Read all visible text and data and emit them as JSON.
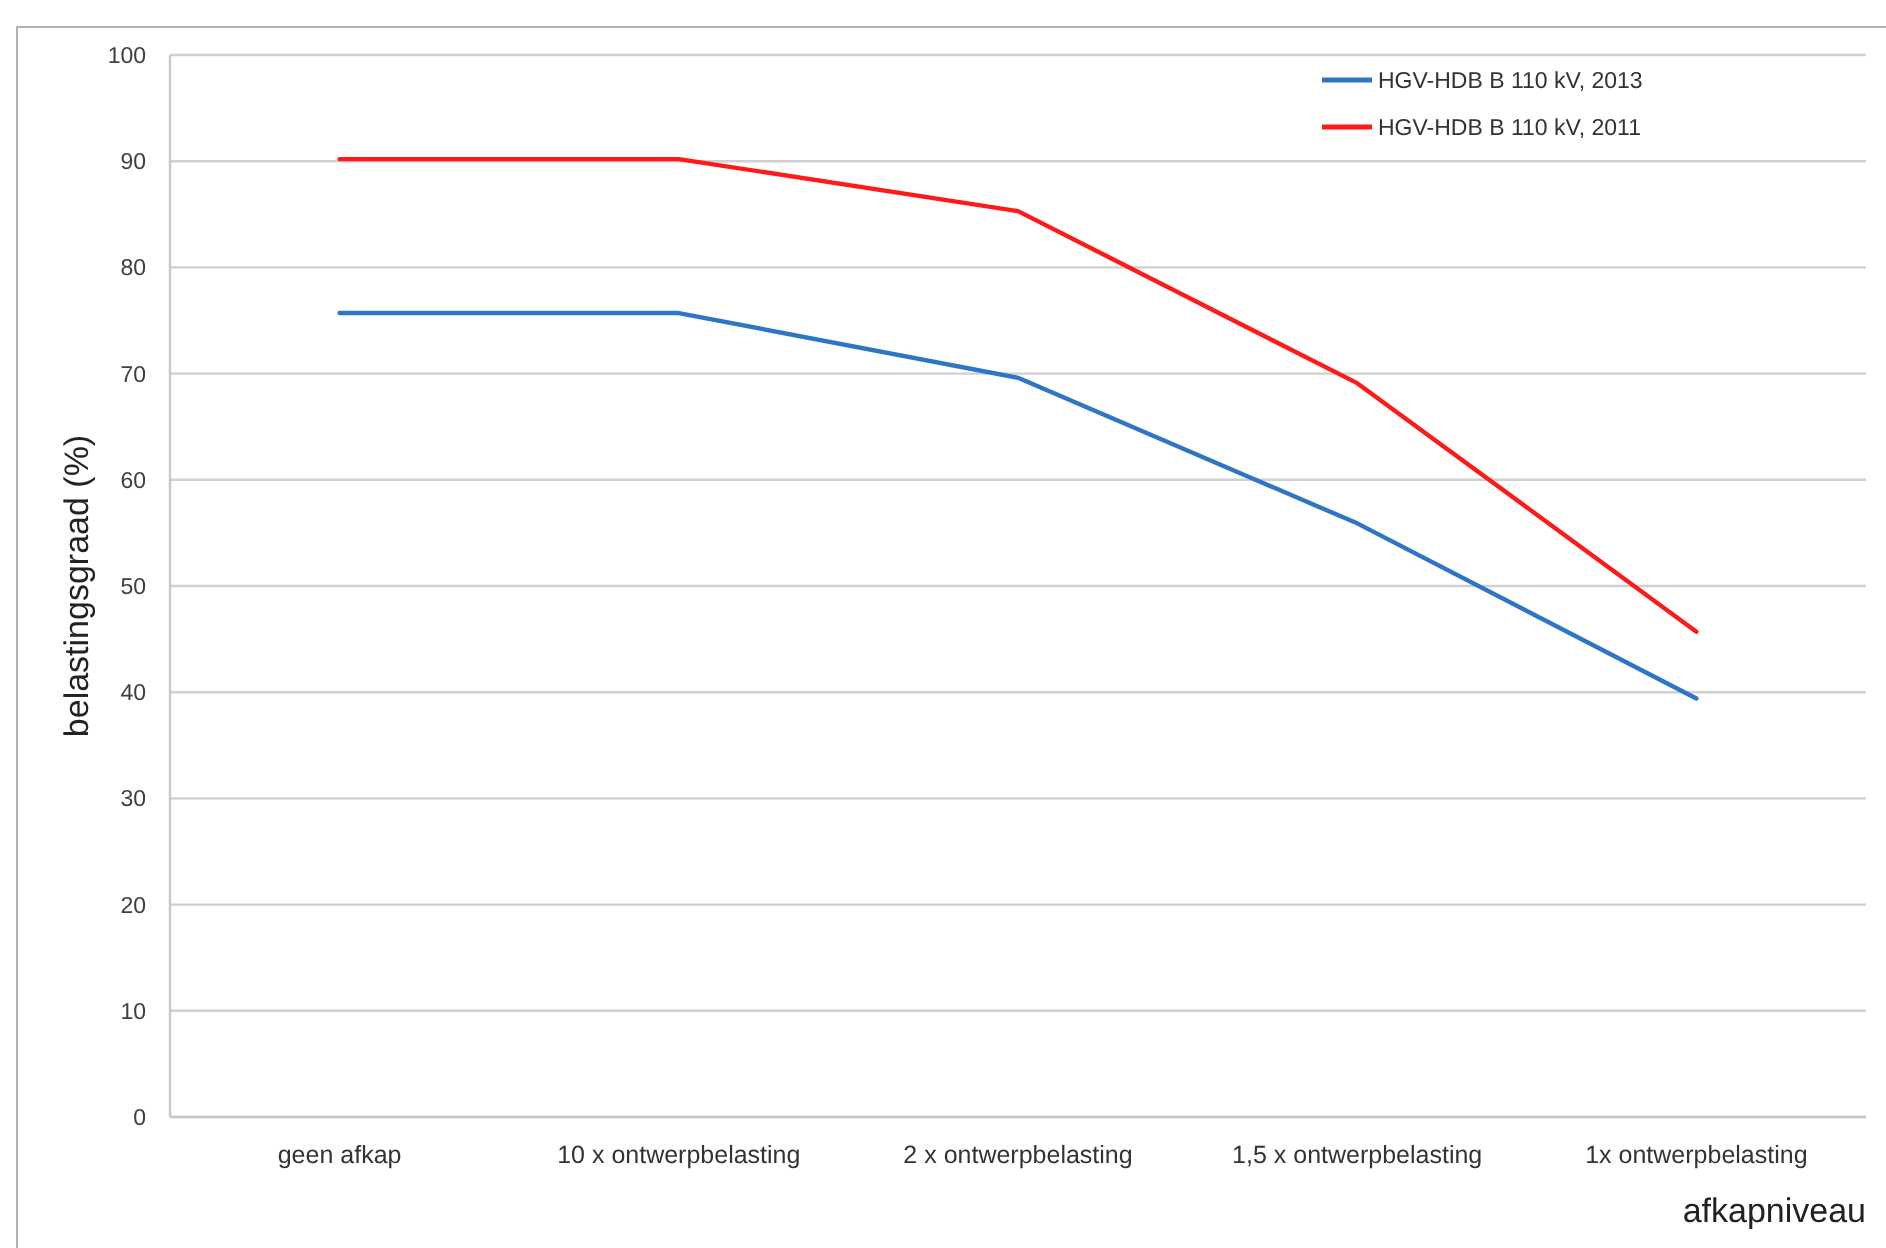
{
  "chart_data": {
    "type": "line",
    "xlabel": "afkapniveau",
    "ylabel": "belastingsgraad (%)",
    "categories": [
      "geen afkap",
      "10 x ontwerpbelasting",
      "2 x ontwerpbelasting",
      "1,5 x ontwerpbelasting",
      "1x ontwerpbelasting"
    ],
    "series": [
      {
        "name": "HGV-HDB B 110 kV, 2013",
        "color": "#2e75c6",
        "values": [
          75.7,
          75.7,
          69.6,
          55.9,
          39.4
        ]
      },
      {
        "name": "HGV-HDB B 110 kV, 2011",
        "color": "#ff1a1a",
        "values": [
          90.2,
          90.2,
          85.3,
          69.1,
          45.7
        ]
      }
    ],
    "ylim": [
      0,
      100
    ],
    "yticks": [
      0,
      10,
      20,
      30,
      40,
      50,
      60,
      70,
      80,
      90,
      100
    ],
    "grid": "y",
    "legend": "top right",
    "marker": "none",
    "line_style": "solid"
  }
}
